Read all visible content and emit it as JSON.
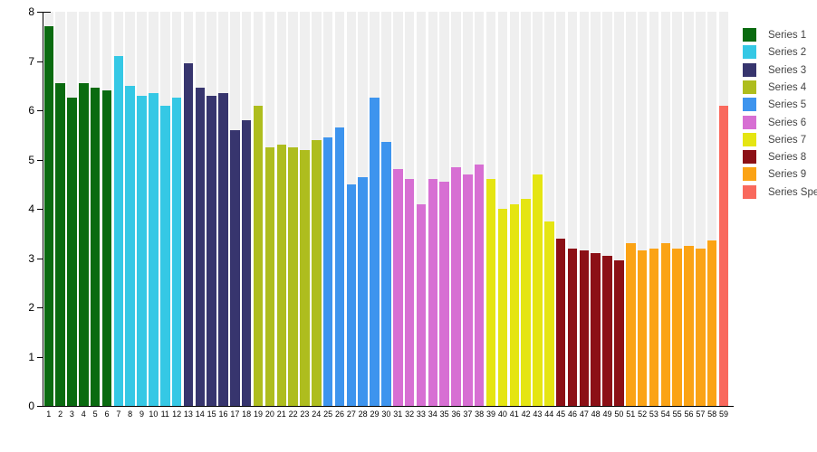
{
  "chart_data": {
    "type": "bar",
    "title": "",
    "xlabel": "",
    "ylabel": "",
    "ylim": [
      0,
      8
    ],
    "y_ticks": [
      0,
      1,
      2,
      3,
      4,
      5,
      6,
      7,
      8
    ],
    "grid": "striped-column-background",
    "legend_position": "right",
    "x_labels": [
      "1",
      "2",
      "3",
      "4",
      "5",
      "6",
      "7",
      "8",
      "9",
      "10",
      "11",
      "12",
      "13",
      "14",
      "15",
      "16",
      "17",
      "18",
      "19",
      "20",
      "21",
      "22",
      "23",
      "24",
      "25",
      "26",
      "27",
      "28",
      "29",
      "30",
      "31",
      "32",
      "33",
      "34",
      "35",
      "36",
      "37",
      "38",
      "39",
      "40",
      "41",
      "42",
      "43",
      "44",
      "45",
      "46",
      "47",
      "48",
      "49",
      "50",
      "51",
      "52",
      "53",
      "54",
      "55",
      "56",
      "57",
      "58",
      "59"
    ],
    "series": [
      {
        "name": "Series 1",
        "color": "#0a6b10",
        "values": [
          7.7,
          6.55,
          6.25,
          6.55,
          6.45,
          6.4
        ]
      },
      {
        "name": "Series 2",
        "color": "#35c8e5",
        "values": [
          7.1,
          6.5,
          6.3,
          6.35,
          6.1,
          6.25
        ]
      },
      {
        "name": "Series 3",
        "color": "#37356e",
        "values": [
          6.95,
          6.45,
          6.3,
          6.35,
          5.6,
          5.8
        ]
      },
      {
        "name": "Series 4",
        "color": "#aebd1e",
        "values": [
          6.1,
          5.25,
          5.3,
          5.25,
          5.2,
          5.4
        ]
      },
      {
        "name": "Series 5",
        "color": "#3d94ee",
        "values": [
          5.45,
          5.65,
          4.5,
          4.65,
          6.25,
          5.35
        ]
      },
      {
        "name": "Series 6",
        "color": "#d76fd3",
        "values": [
          4.8,
          4.6,
          4.1,
          4.6,
          4.55,
          4.85,
          4.7,
          4.9
        ]
      },
      {
        "name": "Series 7",
        "color": "#e5e512",
        "values": [
          4.6,
          4.0,
          4.1,
          4.2,
          4.7,
          3.75
        ]
      },
      {
        "name": "Series 8",
        "color": "#8c1016",
        "values": [
          3.4,
          3.2,
          3.15,
          3.1,
          3.05,
          2.95
        ]
      },
      {
        "name": "Series 9",
        "color": "#fba315",
        "values": [
          3.3,
          3.15,
          3.2,
          3.3,
          3.2,
          3.25,
          3.2,
          3.35
        ]
      },
      {
        "name": "Series Special",
        "color": "#f9695d",
        "values": [
          6.1
        ]
      }
    ]
  },
  "colors": {
    "background": "#ffffff",
    "stripe": "#efefef",
    "axis": "#000000",
    "legend_text": "#444444"
  }
}
